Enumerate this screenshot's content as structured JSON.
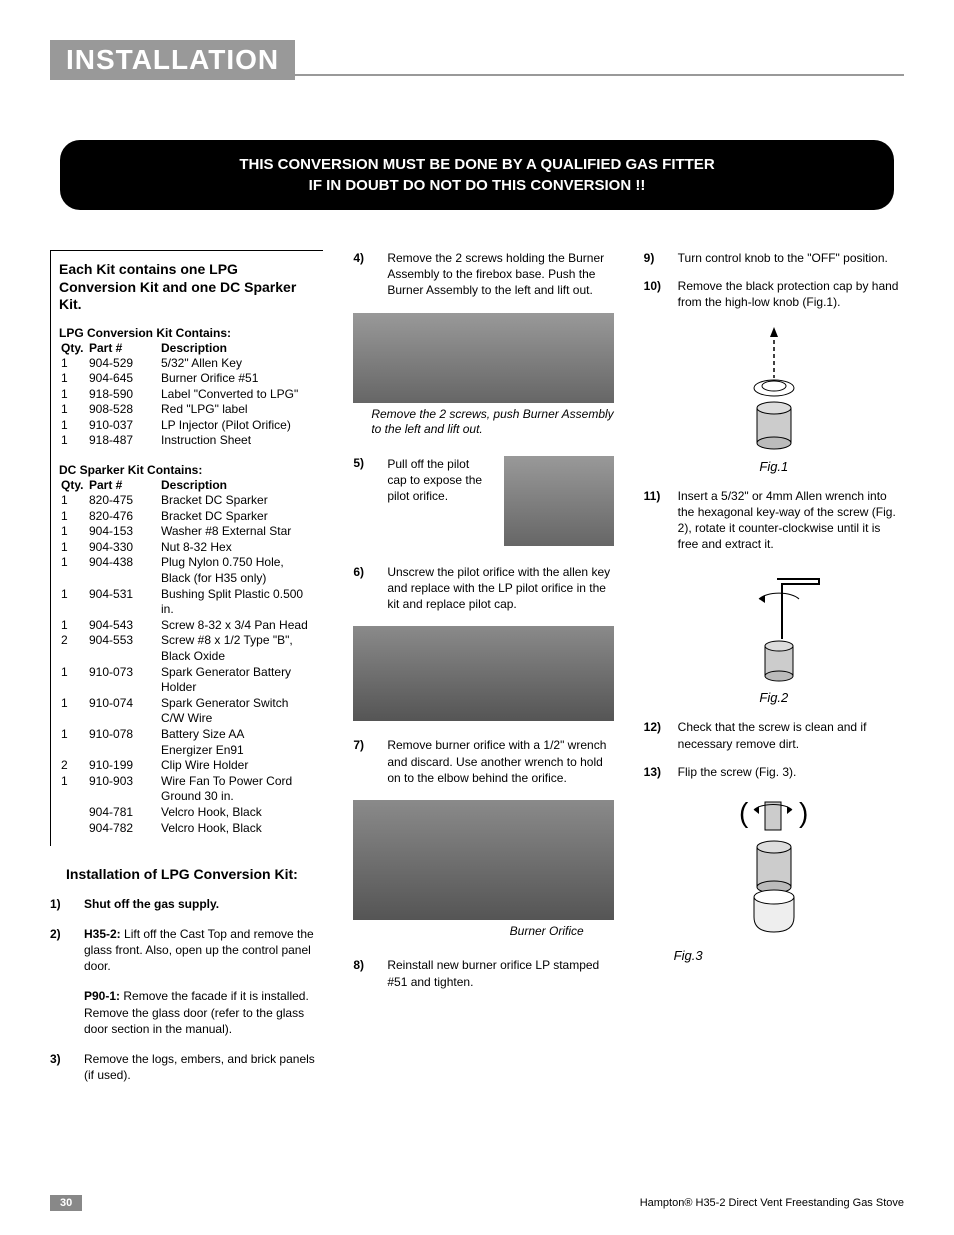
{
  "section_title": "INSTALLATION",
  "warning": {
    "line1": "THIS CONVERSION MUST BE DONE BY A QUALIFIED GAS FITTER",
    "line2": "IF IN DOUBT DO NOT DO THIS CONVERSION !!"
  },
  "kit_intro": "Each Kit contains one LPG Conversion Kit and one DC Sparker Kit.",
  "lpg_kit": {
    "title": "LPG Conversion Kit Contains:",
    "header": {
      "qty": "Qty.",
      "part": "Part #",
      "desc": "Description"
    },
    "rows": [
      {
        "qty": "1",
        "part": "904-529",
        "desc": "5/32\" Allen Key"
      },
      {
        "qty": "1",
        "part": "904-645",
        "desc": "Burner Orifice #51"
      },
      {
        "qty": "1",
        "part": "918-590",
        "desc": "Label \"Converted to LPG\""
      },
      {
        "qty": "1",
        "part": "908-528",
        "desc": "Red \"LPG\" label"
      },
      {
        "qty": "1",
        "part": "910-037",
        "desc": "LP Injector (Pilot Orifice)"
      },
      {
        "qty": "1",
        "part": "918-487",
        "desc": "Instruction Sheet"
      }
    ]
  },
  "dc_kit": {
    "title": "DC Sparker Kit Contains:",
    "header": {
      "qty": "Qty.",
      "part": "Part #",
      "desc": "Description"
    },
    "rows": [
      {
        "qty": "1",
        "part": "820-475",
        "desc": "Bracket DC Sparker"
      },
      {
        "qty": "1",
        "part": "820-476",
        "desc": "Bracket DC Sparker"
      },
      {
        "qty": "1",
        "part": "904-153",
        "desc": "Washer #8 External Star"
      },
      {
        "qty": "1",
        "part": "904-330",
        "desc": "Nut 8-32 Hex"
      },
      {
        "qty": "1",
        "part": "904-438",
        "desc": "Plug Nylon 0.750 Hole, Black (for H35 only)"
      },
      {
        "qty": "1",
        "part": "904-531",
        "desc": "Bushing Split Plastic 0.500 in."
      },
      {
        "qty": "1",
        "part": "904-543",
        "desc": "Screw 8-32 x 3/4 Pan Head"
      },
      {
        "qty": "2",
        "part": "904-553",
        "desc": "Screw #8 x 1/2 Type \"B\", Black Oxide"
      },
      {
        "qty": "1",
        "part": "910-073",
        "desc": "Spark Generator Battery Holder"
      },
      {
        "qty": "1",
        "part": "910-074",
        "desc": "Spark Generator Switch C/W Wire"
      },
      {
        "qty": "1",
        "part": "910-078",
        "desc": "Battery Size AA"
      },
      {
        "qty": "",
        "part": "",
        "desc": "Energizer En91"
      },
      {
        "qty": "2",
        "part": "910-199",
        "desc": "Clip Wire Holder"
      },
      {
        "qty": "1",
        "part": "910-903",
        "desc": "Wire Fan To Power Cord Ground 30 in."
      },
      {
        "qty": "",
        "part": "904-781",
        "desc": "Velcro Hook, Black"
      },
      {
        "qty": "",
        "part": "904-782",
        "desc": "Velcro Hook, Black"
      }
    ]
  },
  "install_head": "Installation of LPG Conversion Kit:",
  "left_steps": {
    "s1": {
      "num": "1)",
      "text": "Shut off the gas supply."
    },
    "s2": {
      "num": "2)",
      "lead": "H35-2:",
      "text": " Lift off the Cast Top and remove the glass front. Also, open up the control panel door."
    },
    "s2b": {
      "lead": "P90-1:",
      "text": " Remove the facade if it is installed. Remove the glass door (refer to the glass door section in the manual)."
    },
    "s3": {
      "num": "3)",
      "text": "Remove the logs, embers, and brick panels (if used)."
    }
  },
  "mid_steps": {
    "s4": {
      "num": "4)",
      "text": "Remove the 2 screws holding the Burner Assembly to the firebox base. Push the Burner Assembly to the left and lift out."
    },
    "cap4": "Remove the 2 screws, push Burner Assembly to the left and lift out.",
    "s5": {
      "num": "5)",
      "text": "Pull off the pilot cap to expose the pilot orifice."
    },
    "s6": {
      "num": "6)",
      "text": "Unscrew the pilot orifice with the allen key and replace with the LP pilot orifice in the kit and replace pilot cap."
    },
    "s7": {
      "num": "7)",
      "text": "Remove burner orifice with a 1/2\" wrench and discard. Use another wrench to hold on to the elbow behind the orifice."
    },
    "cap7": "Burner Orifice",
    "s8": {
      "num": "8)",
      "text": "Reinstall new burner orifice LP stamped #51 and tighten."
    }
  },
  "right_steps": {
    "s9": {
      "num": "9)",
      "text": "Turn control knob to the \"OFF\" position."
    },
    "s10": {
      "num": "10)",
      "text": "Remove the black protection cap by hand from the high-low knob (Fig.1)."
    },
    "fig1": "Fig.1",
    "s11": {
      "num": "11)",
      "text": "Insert a 5/32\" or 4mm Allen wrench into the hexagonal key-way of the screw (Fig. 2), rotate it counter-clockwise until it is free and extract it."
    },
    "fig2": "Fig.2",
    "s12": {
      "num": "12)",
      "text": "Check that the screw is clean and if necessary remove dirt."
    },
    "s13": {
      "num": "13)",
      "text": "Flip the screw (Fig. 3)."
    },
    "fig3": "Fig.3"
  },
  "footer": {
    "page": "30",
    "doc": "Hampton® H35-2 Direct Vent Freestanding Gas Stove"
  }
}
